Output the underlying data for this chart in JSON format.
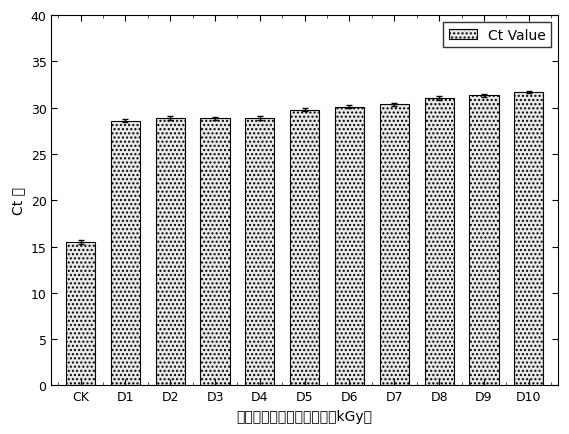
{
  "categories": [
    "CK",
    "D1",
    "D2",
    "D3",
    "D4",
    "D5",
    "D6",
    "D7",
    "D8",
    "D9",
    "D10"
  ],
  "values": [
    15.5,
    28.6,
    28.9,
    28.85,
    28.9,
    29.8,
    30.1,
    30.35,
    31.0,
    31.35,
    31.7
  ],
  "errors": [
    0.25,
    0.18,
    0.18,
    0.15,
    0.25,
    0.18,
    0.18,
    0.18,
    0.22,
    0.15,
    0.12
  ],
  "bar_facecolor": "#e8e8e8",
  "bar_edgecolor": "#000000",
  "hatch": "....",
  "xlabel": "电子束辐照消毒吸收剂量（kGy）",
  "ylabel": "Ct 值",
  "ylim": [
    0,
    40
  ],
  "yticks": [
    0,
    5,
    10,
    15,
    20,
    25,
    30,
    35,
    40
  ],
  "legend_label": "Ct Value",
  "legend_loc": "upper right",
  "figsize": [
    5.69,
    4.35
  ],
  "dpi": 100,
  "bar_width": 0.65,
  "capsize": 2,
  "errorbar_color": "#000000",
  "errorbar_linewidth": 1.0,
  "xlabel_fontsize": 10,
  "ylabel_fontsize": 10,
  "tick_fontsize": 9,
  "legend_fontsize": 10
}
